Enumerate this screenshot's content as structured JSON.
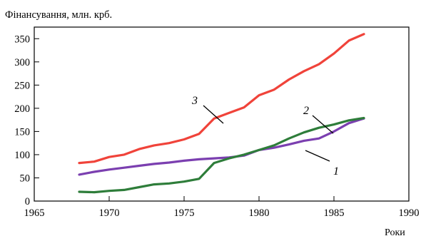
{
  "chart_data": {
    "type": "line",
    "ylabel": "Фінансування, млн. крб.",
    "xlabel": "Роки",
    "xlim": [
      1965,
      1990
    ],
    "ylim": [
      0,
      375
    ],
    "xticks": [
      1965,
      1970,
      1975,
      1980,
      1985,
      1990
    ],
    "xtick_labels": [
      "1965",
      "1970",
      "1975",
      "1980",
      "1985",
      "1990"
    ],
    "yticks": [
      0,
      50,
      100,
      150,
      200,
      250,
      300,
      350
    ],
    "ytick_labels": [
      "0",
      "50",
      "100",
      "150",
      "200",
      "250",
      "300",
      "350"
    ],
    "grid": false,
    "legend": "none",
    "series": [
      {
        "label": "1",
        "color": "#7b3fb0",
        "x": [
          1968,
          1969,
          1970,
          1971,
          1972,
          1973,
          1974,
          1975,
          1976,
          1977,
          1978,
          1979,
          1980,
          1981,
          1982,
          1983,
          1984,
          1985,
          1986,
          1987
        ],
        "y": [
          57,
          63,
          68,
          72,
          76,
          80,
          83,
          87,
          90,
          92,
          94,
          98,
          110,
          115,
          122,
          130,
          135,
          150,
          168,
          178
        ]
      },
      {
        "label": "2",
        "color": "#2e7d3a",
        "x": [
          1968,
          1969,
          1970,
          1971,
          1972,
          1973,
          1974,
          1975,
          1976,
          1977,
          1978,
          1979,
          1980,
          1981,
          1982,
          1983,
          1984,
          1985,
          1986,
          1987
        ],
        "y": [
          20,
          19,
          22,
          24,
          30,
          36,
          38,
          42,
          48,
          82,
          92,
          100,
          110,
          120,
          135,
          148,
          158,
          165,
          174,
          179
        ]
      },
      {
        "label": "3",
        "color": "#f0433a",
        "x": [
          1968,
          1969,
          1970,
          1971,
          1972,
          1973,
          1974,
          1975,
          1976,
          1977,
          1978,
          1979,
          1980,
          1981,
          1982,
          1983,
          1984,
          1985,
          1986,
          1987
        ],
        "y": [
          82,
          85,
          95,
          100,
          112,
          120,
          125,
          133,
          145,
          178,
          190,
          202,
          228,
          240,
          262,
          280,
          295,
          318,
          346,
          360
        ]
      }
    ]
  }
}
